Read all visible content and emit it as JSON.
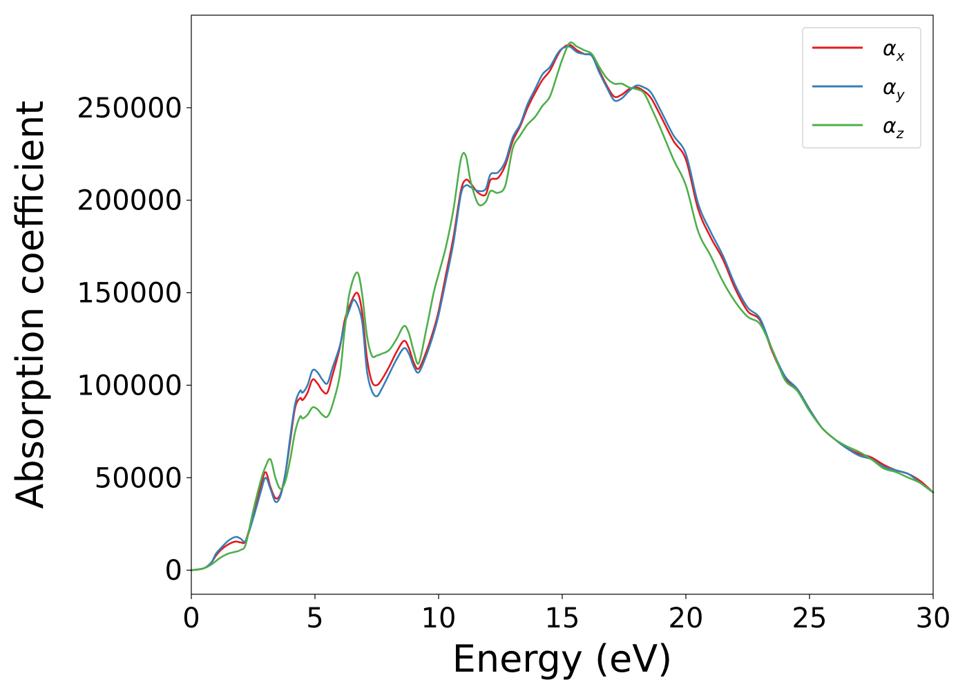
{
  "chart_data": {
    "type": "line",
    "title": "",
    "xlabel": "Energy (eV)",
    "ylabel": "Absorption coefficient",
    "xlim": [
      0,
      30
    ],
    "ylim": [
      -13000,
      300000
    ],
    "xticks": [
      0,
      5,
      10,
      15,
      20,
      25,
      30
    ],
    "yticks": [
      0,
      50000,
      100000,
      150000,
      200000,
      250000
    ],
    "grid": false,
    "legend_position": "top-right",
    "series": [
      {
        "name": "α",
        "subscript": "x",
        "color": "#e41a1c",
        "x": [
          0,
          0.5,
          0.8,
          1.0,
          1.2,
          1.5,
          1.8,
          2.0,
          2.2,
          2.5,
          2.8,
          3.0,
          3.2,
          3.4,
          3.6,
          3.8,
          4.0,
          4.2,
          4.4,
          4.5,
          4.7,
          4.9,
          5.1,
          5.3,
          5.5,
          5.7,
          6.0,
          6.2,
          6.4,
          6.7,
          6.9,
          7.1,
          7.3,
          7.5,
          7.7,
          8.0,
          8.3,
          8.6,
          8.8,
          9.0,
          9.2,
          9.5,
          9.8,
          10.0,
          10.3,
          10.6,
          10.9,
          11.1,
          11.3,
          11.6,
          11.9,
          12.1,
          12.4,
          12.7,
          13.0,
          13.3,
          13.6,
          13.9,
          14.2,
          14.5,
          14.8,
          15.0,
          15.3,
          15.6,
          15.9,
          16.2,
          16.5,
          16.8,
          17.1,
          17.4,
          17.7,
          18.0,
          18.3,
          18.6,
          19.0,
          19.5,
          20.0,
          20.5,
          21.0,
          21.5,
          22.0,
          22.5,
          23.0,
          23.5,
          24.0,
          24.5,
          25.0,
          25.5,
          26.0,
          26.5,
          27.0,
          27.5,
          28.0,
          28.5,
          29.0,
          29.5,
          30.0
        ],
        "y": [
          0,
          1000,
          4000,
          8000,
          11000,
          14000,
          15500,
          15000,
          16000,
          30000,
          45000,
          53000,
          45000,
          39000,
          41000,
          52000,
          70000,
          88000,
          93000,
          92000,
          96000,
          103000,
          101000,
          97000,
          96000,
          105000,
          120000,
          135000,
          143000,
          150000,
          140000,
          115000,
          102000,
          100000,
          103000,
          110000,
          118000,
          124000,
          120000,
          112000,
          109000,
          118000,
          130000,
          140000,
          160000,
          180000,
          205000,
          211000,
          209000,
          204000,
          203000,
          211000,
          212000,
          219000,
          232000,
          240000,
          250000,
          258000,
          265000,
          270000,
          278000,
          282000,
          284000,
          281000,
          279000,
          278000,
          270000,
          262000,
          256000,
          257000,
          260000,
          261000,
          259000,
          255000,
          245000,
          232000,
          222000,
          195000,
          180000,
          168000,
          152000,
          140000,
          135000,
          118000,
          104000,
          98000,
          87000,
          77000,
          71000,
          66000,
          63000,
          61000,
          57000,
          54000,
          52000,
          48000,
          42000
        ]
      },
      {
        "name": "α",
        "subscript": "y",
        "color": "#377eb8",
        "x": [
          0,
          0.5,
          0.8,
          1.0,
          1.2,
          1.5,
          1.8,
          2.0,
          2.2,
          2.5,
          2.8,
          3.0,
          3.2,
          3.4,
          3.6,
          3.8,
          4.0,
          4.2,
          4.4,
          4.5,
          4.7,
          4.9,
          5.1,
          5.3,
          5.5,
          5.7,
          6.0,
          6.2,
          6.4,
          6.6,
          6.9,
          7.1,
          7.3,
          7.5,
          7.7,
          8.0,
          8.3,
          8.6,
          8.8,
          9.0,
          9.2,
          9.5,
          9.8,
          10.0,
          10.3,
          10.6,
          10.9,
          11.1,
          11.3,
          11.6,
          11.9,
          12.1,
          12.4,
          12.7,
          13.0,
          13.3,
          13.6,
          13.9,
          14.2,
          14.5,
          14.8,
          15.0,
          15.3,
          15.6,
          15.9,
          16.2,
          16.5,
          16.8,
          17.1,
          17.4,
          17.7,
          18.0,
          18.3,
          18.6,
          19.0,
          19.5,
          20.0,
          20.5,
          21.0,
          21.5,
          22.0,
          22.5,
          23.0,
          23.5,
          24.0,
          24.5,
          25.0,
          25.5,
          26.0,
          26.5,
          27.0,
          27.5,
          28.0,
          28.5,
          29.0,
          29.5,
          30.0
        ],
        "y": [
          0,
          1000,
          4000,
          9000,
          12000,
          16000,
          18000,
          17000,
          16000,
          28000,
          42000,
          50000,
          44000,
          37000,
          40000,
          52000,
          72000,
          90000,
          97000,
          96000,
          100000,
          108000,
          107000,
          103000,
          101000,
          109000,
          121000,
          133000,
          141000,
          146000,
          135000,
          108000,
          97000,
          94000,
          98000,
          106000,
          114000,
          120000,
          117000,
          110000,
          107000,
          116000,
          128000,
          138000,
          157000,
          177000,
          203000,
          208000,
          207000,
          205000,
          206000,
          214000,
          215000,
          221000,
          234000,
          241000,
          252000,
          260000,
          268000,
          272000,
          279000,
          282000,
          283000,
          280000,
          279000,
          278000,
          269000,
          261000,
          254000,
          255000,
          259000,
          262000,
          261000,
          258000,
          248000,
          235000,
          225000,
          198000,
          183000,
          170000,
          154000,
          142000,
          136000,
          119000,
          105000,
          98000,
          87000,
          77000,
          71000,
          66000,
          62000,
          60000,
          56000,
          54000,
          52000,
          47000,
          42000
        ]
      },
      {
        "name": "α",
        "subscript": "z",
        "color": "#4daf4a",
        "x": [
          0,
          0.5,
          0.8,
          1.0,
          1.2,
          1.5,
          1.8,
          2.0,
          2.2,
          2.5,
          2.8,
          3.0,
          3.2,
          3.4,
          3.6,
          3.8,
          4.0,
          4.2,
          4.4,
          4.5,
          4.7,
          4.9,
          5.1,
          5.3,
          5.5,
          5.7,
          6.0,
          6.2,
          6.4,
          6.7,
          6.9,
          7.1,
          7.3,
          7.5,
          7.7,
          8.0,
          8.3,
          8.6,
          8.8,
          9.0,
          9.2,
          9.5,
          9.8,
          10.0,
          10.3,
          10.6,
          10.9,
          11.1,
          11.3,
          11.6,
          11.9,
          12.1,
          12.4,
          12.7,
          13.0,
          13.3,
          13.6,
          13.9,
          14.2,
          14.5,
          14.8,
          15.0,
          15.3,
          15.6,
          15.9,
          16.2,
          16.5,
          16.8,
          17.1,
          17.4,
          17.7,
          18.0,
          18.3,
          18.6,
          19.0,
          19.5,
          20.0,
          20.5,
          21.0,
          21.5,
          22.0,
          22.5,
          23.0,
          23.5,
          24.0,
          24.5,
          25.0,
          25.5,
          26.0,
          26.5,
          27.0,
          27.5,
          28.0,
          28.5,
          29.0,
          29.5,
          30.0
        ],
        "y": [
          0,
          1000,
          3000,
          5000,
          7000,
          9000,
          10000,
          11000,
          14000,
          32000,
          48000,
          56000,
          60000,
          50000,
          44000,
          48000,
          60000,
          75000,
          83000,
          82000,
          84000,
          88000,
          87000,
          84000,
          83000,
          89000,
          105000,
          130000,
          150000,
          161000,
          150000,
          127000,
          116000,
          116000,
          117000,
          119000,
          125000,
          132000,
          128000,
          118000,
          112000,
          130000,
          150000,
          160000,
          175000,
          195000,
          222000,
          224000,
          210000,
          198000,
          199000,
          205000,
          204000,
          208000,
          228000,
          235000,
          241000,
          245000,
          251000,
          256000,
          268000,
          276000,
          285000,
          283000,
          281000,
          279000,
          272000,
          266000,
          263000,
          263000,
          261000,
          260000,
          258000,
          250000,
          238000,
          222000,
          208000,
          183000,
          170000,
          156000,
          145000,
          137000,
          133000,
          119000,
          103000,
          97000,
          86000,
          77000,
          71000,
          67000,
          64000,
          60000,
          55000,
          53000,
          50000,
          47000,
          42000
        ]
      }
    ]
  }
}
